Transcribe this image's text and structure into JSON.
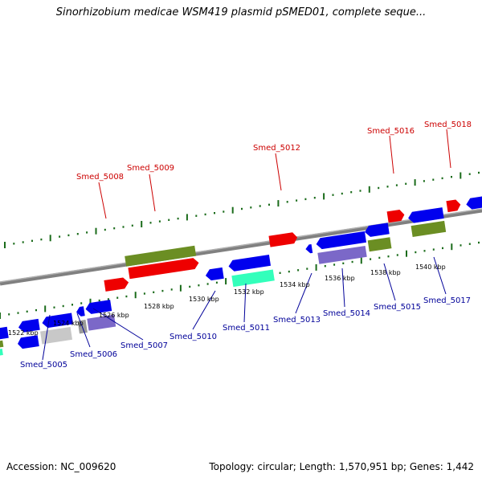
{
  "title": "Sinorhizobium medicae WSM419 plasmid pSMED01, complete seque...",
  "footer": {
    "accession": "Accession: NC_009620",
    "summary": "Topology: circular; Length: 1,570,951 bp; Genes: 1,442"
  },
  "colors": {
    "forward_gene": "#ee0000",
    "reverse_gene": "#0000ee",
    "olive_gene": "#6b8e23",
    "purple_gene": "#7b68c8",
    "cyan_gene": "#33ffbb",
    "grey_gene": "#c8c8c8",
    "backbone": "#808080",
    "tick_green": "#1a6b1a",
    "label_top": "#cc0000",
    "label_bottom": "#000099"
  },
  "top_labels": [
    "Smed_5008",
    "Smed_5009",
    "Smed_5012",
    "Smed_5016",
    "Smed_5018"
  ],
  "bottom_labels": [
    "Smed_5005",
    "Smed_5006",
    "Smed_5007",
    "Smed_5010",
    "Smed_5011",
    "Smed_5013",
    "Smed_5014",
    "Smed_5015",
    "Smed_5017"
  ],
  "scale_labels": [
    "1522 kbp",
    "1524 kbp",
    "1526 kbp",
    "1528 kbp",
    "1530 kbp",
    "1532 kbp",
    "1534 kbp",
    "1536 kbp",
    "1538 kbp",
    "1540 kbp"
  ]
}
